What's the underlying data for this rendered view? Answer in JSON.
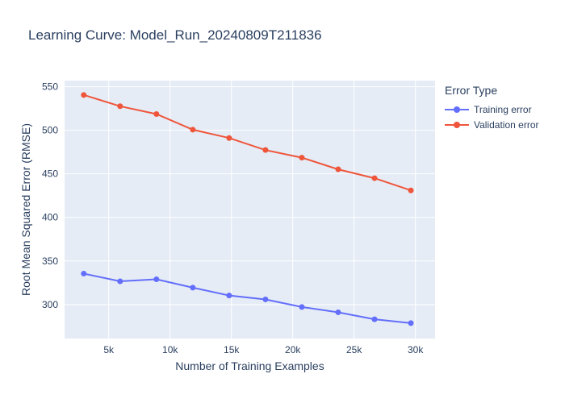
{
  "chart_data": {
    "type": "line",
    "title": "Learning Curve: Model_Run_20240809T211836",
    "xlabel": "Number of Training Examples",
    "ylabel": "Root Mean Squared Error (RMSE)",
    "xlim": [
      1400,
      31600
    ],
    "ylim": [
      261,
      557
    ],
    "x_ticks": [
      5000,
      10000,
      15000,
      20000,
      25000,
      30000
    ],
    "x_tick_labels": [
      "5k",
      "10k",
      "15k",
      "20k",
      "25k",
      "30k"
    ],
    "y_ticks": [
      300,
      350,
      400,
      450,
      500,
      550
    ],
    "y_tick_labels": [
      "300",
      "350",
      "400",
      "450",
      "500",
      "550"
    ],
    "grid": true,
    "legend_title": "Error Type",
    "legend_position": "right",
    "x": [
      2963,
      5926,
      8889,
      11852,
      14815,
      17778,
      20741,
      23704,
      26667,
      29630
    ],
    "series": [
      {
        "name": "Training error",
        "color": "#636efa",
        "values": [
          335.5,
          326.7,
          329.0,
          319.4,
          310.4,
          305.9,
          297.2,
          291.1,
          283.1,
          278.7
        ]
      },
      {
        "name": "Validation error",
        "color": "#ef553b",
        "values": [
          540.5,
          527.6,
          518.6,
          500.7,
          491.1,
          477.3,
          468.6,
          455.2,
          445.0,
          431.0
        ]
      }
    ]
  }
}
